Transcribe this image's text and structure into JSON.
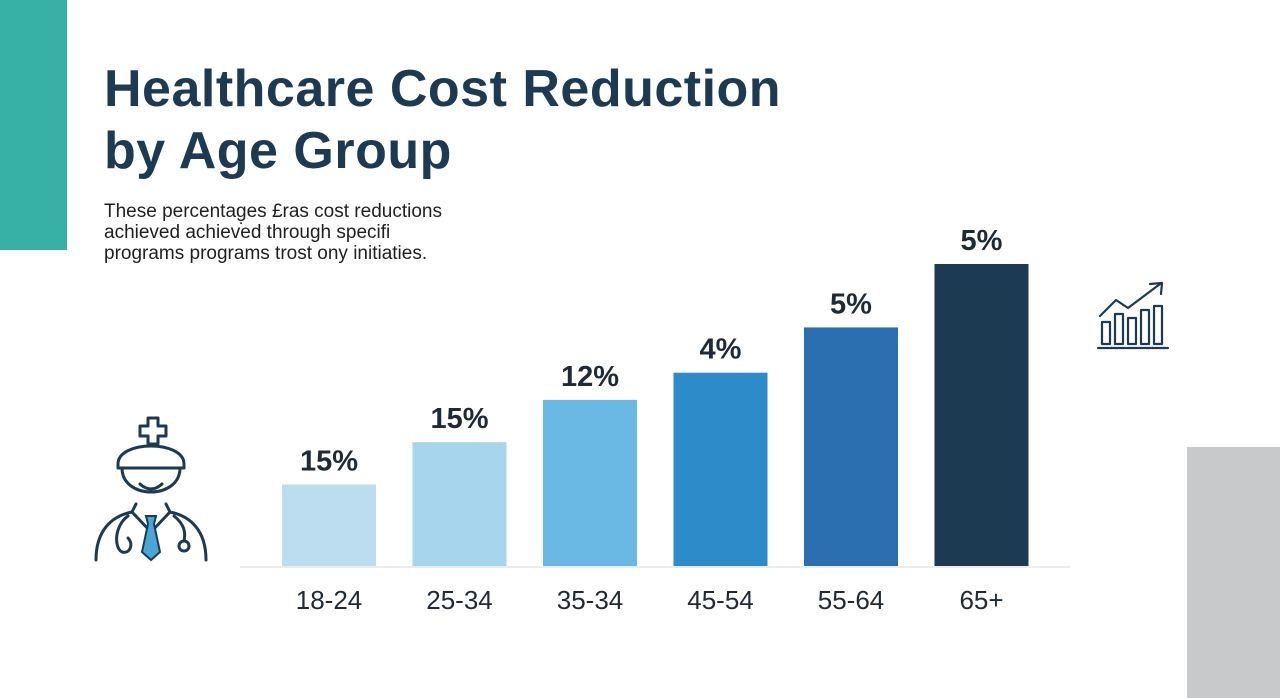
{
  "title_lines": [
    "Healthcare Cost Reduction",
    "by Age Group"
  ],
  "subtitle_lines": [
    "These percentag̣es £ras cost reductions",
    "achieved achieved through specifi",
    "programs programs trost ony initiaties."
  ],
  "colors": {
    "title": "#1c3a52",
    "accent_left": "#37b0a6",
    "accent_right": "#c7c9cb",
    "icon_stroke": "#1c3a52",
    "icon_accent": "#4aa6d6"
  },
  "icons": [
    "doctor-icon",
    "growth-chart-icon"
  ],
  "chart_data": {
    "type": "bar",
    "categories": [
      "18-24",
      "25-34",
      "35-34",
      "45-54",
      "55-64",
      "65+"
    ],
    "labels": [
      "15%",
      "15%",
      "12%",
      "4%",
      "5%",
      "5%"
    ],
    "bar_heights": [
      0.27,
      0.41,
      0.55,
      0.64,
      0.79,
      1.0
    ],
    "colors": [
      "#bcdcf0",
      "#a7d5ee",
      "#6ab8e4",
      "#2e8bc9",
      "#2b6fb0",
      "#1c3a52"
    ],
    "grid": false,
    "legend": "none"
  }
}
